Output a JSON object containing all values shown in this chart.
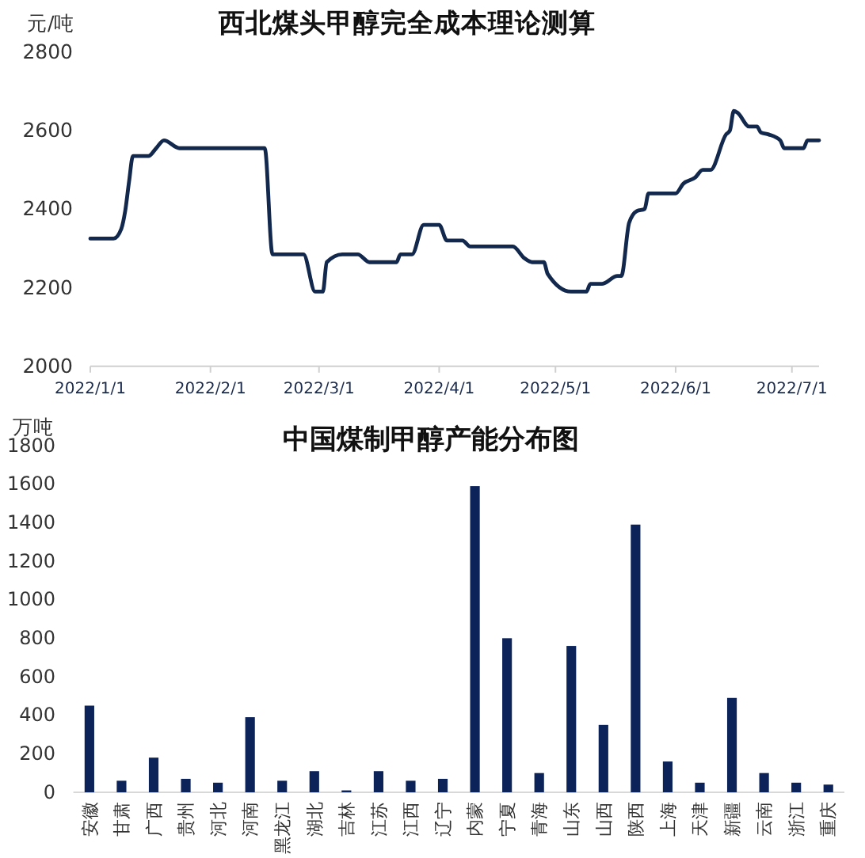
{
  "chart_data": [
    {
      "type": "line",
      "title": "西北煤头甲醇完全成本理论测算",
      "ylabel": "元/吨",
      "color": "#13284d",
      "x": [
        "2022-01-01",
        "2022-01-07",
        "2022-01-09",
        "2022-01-10",
        "2022-01-11",
        "2022-01-12",
        "2022-01-16",
        "2022-01-18",
        "2022-01-20",
        "2022-01-24",
        "2022-02-15",
        "2022-02-17",
        "2022-02-25",
        "2022-02-28",
        "2022-03-02",
        "2022-03-03",
        "2022-03-07",
        "2022-03-11",
        "2022-03-14",
        "2022-03-21",
        "2022-03-22",
        "2022-03-25",
        "2022-03-28",
        "2022-04-01",
        "2022-04-03",
        "2022-04-07",
        "2022-04-09",
        "2022-04-20",
        "2022-04-23",
        "2022-04-25",
        "2022-04-28",
        "2022-04-29",
        "2022-05-05",
        "2022-05-09",
        "2022-05-10",
        "2022-05-13",
        "2022-05-17",
        "2022-05-18",
        "2022-05-20",
        "2022-05-22",
        "2022-05-24",
        "2022-05-25",
        "2022-06-01",
        "2022-06-03",
        "2022-06-06",
        "2022-06-08",
        "2022-06-10",
        "2022-06-14",
        "2022-06-15",
        "2022-06-16",
        "2022-06-17",
        "2022-06-20",
        "2022-06-22",
        "2022-06-23",
        "2022-06-25",
        "2022-06-28",
        "2022-06-29",
        "2022-07-04",
        "2022-07-05",
        "2022-07-08"
      ],
      "values": [
        2325,
        2325,
        2350,
        2395,
        2470,
        2535,
        2535,
        2555,
        2575,
        2555,
        2555,
        2285,
        2285,
        2190,
        2190,
        2265,
        2285,
        2285,
        2265,
        2265,
        2285,
        2285,
        2360,
        2360,
        2320,
        2320,
        2305,
        2305,
        2275,
        2265,
        2265,
        2235,
        2190,
        2190,
        2210,
        2210,
        2230,
        2230,
        2365,
        2395,
        2400,
        2440,
        2440,
        2465,
        2480,
        2500,
        2500,
        2590,
        2600,
        2650,
        2645,
        2610,
        2610,
        2595,
        2590,
        2575,
        2555,
        2555,
        2575,
        2575
      ],
      "xlim": [
        "2022-01-01",
        "2022-07-08"
      ],
      "xticks": [
        {
          "value": "2022-01-01",
          "label": "2022/1/1"
        },
        {
          "value": "2022-02-01",
          "label": "2022/2/1"
        },
        {
          "value": "2022-03-01",
          "label": "2022/3/1"
        },
        {
          "value": "2022-04-01",
          "label": "2022/4/1"
        },
        {
          "value": "2022-05-01",
          "label": "2022/5/1"
        },
        {
          "value": "2022-06-01",
          "label": "2022/6/1"
        },
        {
          "value": "2022-07-01",
          "label": "2022/7/1"
        }
      ],
      "ylim": [
        2000,
        2800
      ],
      "yticks": [
        2000,
        2200,
        2400,
        2600,
        2800
      ]
    },
    {
      "type": "bar",
      "title": "中国煤制甲醇产能分布图",
      "ylabel": "万吨",
      "color": "#0c2359",
      "categories": [
        "安徽",
        "甘肃",
        "广西",
        "贵州",
        "河北",
        "河南",
        "黑龙江",
        "湖北",
        "吉林",
        "江苏",
        "江西",
        "辽宁",
        "内蒙",
        "宁夏",
        "青海",
        "山东",
        "山西",
        "陕西",
        "上海",
        "天津",
        "新疆",
        "云南",
        "浙江",
        "重庆"
      ],
      "values": [
        450,
        60,
        180,
        70,
        50,
        390,
        60,
        110,
        10,
        110,
        60,
        70,
        1590,
        800,
        100,
        760,
        350,
        1390,
        160,
        50,
        490,
        100,
        50,
        40
      ],
      "ylim": [
        0,
        1800
      ],
      "yticks": [
        0,
        200,
        400,
        600,
        800,
        1000,
        1200,
        1400,
        1600,
        1800
      ]
    }
  ]
}
